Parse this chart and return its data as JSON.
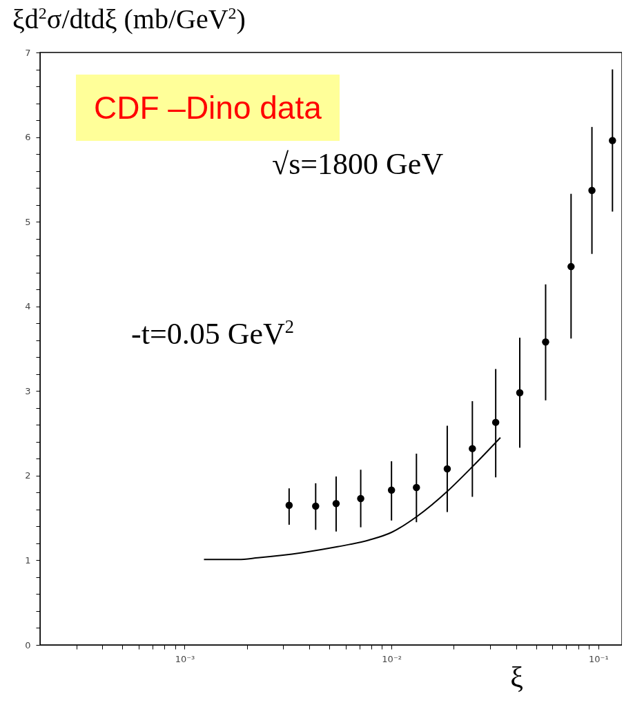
{
  "chart_data": {
    "type": "scatter",
    "ylabel": "ξd$^{2}$σ/dtdξ (mb/GeV$^{2}$)",
    "xlabel": "ξ",
    "annotations": [
      "CDF –Dino data",
      "√s=1800 GeV",
      "-t=0.05 GeV$^{2}$"
    ],
    "log": "x",
    "xlim": [
      0.0002,
      0.13
    ],
    "xticks": [
      {
        "value": 0.0003,
        "label": null
      },
      {
        "value": 0.0004,
        "label": null
      },
      {
        "value": 0.0005,
        "label": null
      },
      {
        "value": 0.0006,
        "label": null
      },
      {
        "value": 0.0007,
        "label": null
      },
      {
        "value": 0.0008,
        "label": null
      },
      {
        "value": 0.0009,
        "label": null
      },
      {
        "value": 0.001,
        "label": "10⁻³"
      },
      {
        "value": 0.002,
        "label": null
      },
      {
        "value": 0.003,
        "label": null
      },
      {
        "value": 0.004,
        "label": null
      },
      {
        "value": 0.005,
        "label": null
      },
      {
        "value": 0.006,
        "label": null
      },
      {
        "value": 0.007,
        "label": null
      },
      {
        "value": 0.008,
        "label": null
      },
      {
        "value": 0.009,
        "label": null
      },
      {
        "value": 0.01,
        "label": "10⁻²"
      },
      {
        "value": 0.02,
        "label": null
      },
      {
        "value": 0.03,
        "label": null
      },
      {
        "value": 0.04,
        "label": null
      },
      {
        "value": 0.05,
        "label": null
      },
      {
        "value": 0.06,
        "label": null
      },
      {
        "value": 0.07,
        "label": null
      },
      {
        "value": 0.08,
        "label": null
      },
      {
        "value": 0.09,
        "label": null
      },
      {
        "value": 0.1,
        "label": "10⁻¹"
      }
    ],
    "ylim": [
      0,
      7
    ],
    "yticks": [
      0,
      {
        "value": 0.2,
        "label": null
      },
      {
        "value": 0.4,
        "label": null
      },
      {
        "value": 0.6,
        "label": null
      },
      {
        "value": 0.8,
        "label": null
      },
      1,
      {
        "value": 1.2,
        "label": null
      },
      {
        "value": 1.4,
        "label": null
      },
      {
        "value": 1.6,
        "label": null
      },
      {
        "value": 1.8,
        "label": null
      },
      2,
      {
        "value": 2.2,
        "label": null
      },
      {
        "value": 2.4,
        "label": null
      },
      {
        "value": 2.6,
        "label": null
      },
      {
        "value": 2.8,
        "label": null
      },
      3,
      {
        "value": 3.2,
        "label": null
      },
      {
        "value": 3.4,
        "label": null
      },
      {
        "value": 3.6,
        "label": null
      },
      {
        "value": 3.8,
        "label": null
      },
      4,
      {
        "value": 4.2,
        "label": null
      },
      {
        "value": 4.4,
        "label": null
      },
      {
        "value": 4.6,
        "label": null
      },
      {
        "value": 4.8,
        "label": null
      },
      5,
      {
        "value": 5.2,
        "label": null
      },
      {
        "value": 5.4,
        "label": null
      },
      {
        "value": 5.6,
        "label": null
      },
      {
        "value": 5.8,
        "label": null
      },
      6,
      {
        "value": 6.2,
        "label": null
      },
      {
        "value": 6.4,
        "label": null
      },
      {
        "value": 6.6,
        "label": null
      },
      {
        "value": 6.8,
        "label": null
      },
      7
    ],
    "series": [
      {
        "color": "#000000",
        "marker": "circle",
        "x": [
          0.0032,
          0.0043,
          0.0054,
          0.0071,
          0.01,
          0.0132,
          0.0186,
          0.0246,
          0.0319,
          0.0417,
          0.0556,
          0.0738,
          0.0931,
          0.117
        ],
        "values": [
          1.65,
          1.64,
          1.67,
          1.73,
          1.83,
          1.86,
          2.08,
          2.32,
          2.63,
          2.98,
          3.58,
          4.47,
          5.37,
          5.96
        ],
        "errors": [
          [
            1.42,
            1.85
          ],
          [
            1.36,
            1.91
          ],
          [
            1.34,
            1.99
          ],
          [
            1.39,
            2.07
          ],
          [
            1.47,
            2.17
          ],
          [
            1.45,
            2.26
          ],
          [
            1.57,
            2.59
          ],
          [
            1.75,
            2.88
          ],
          [
            1.98,
            3.26
          ],
          [
            2.33,
            3.63
          ],
          [
            2.89,
            4.26
          ],
          [
            3.62,
            5.33
          ],
          [
            4.62,
            6.12
          ],
          [
            5.12,
            6.8
          ]
        ]
      },
      {
        "type": "line",
        "color": "#000000",
        "x": [
          0.00124,
          0.00182,
          0.00226,
          0.00368,
          0.00548,
          0.00781,
          0.01,
          0.0133,
          0.0187,
          0.0247,
          0.0336
        ],
        "values": [
          1.01,
          1.01,
          1.03,
          1.09,
          1.16,
          1.24,
          1.33,
          1.52,
          1.82,
          2.11,
          2.45
        ]
      }
    ]
  }
}
